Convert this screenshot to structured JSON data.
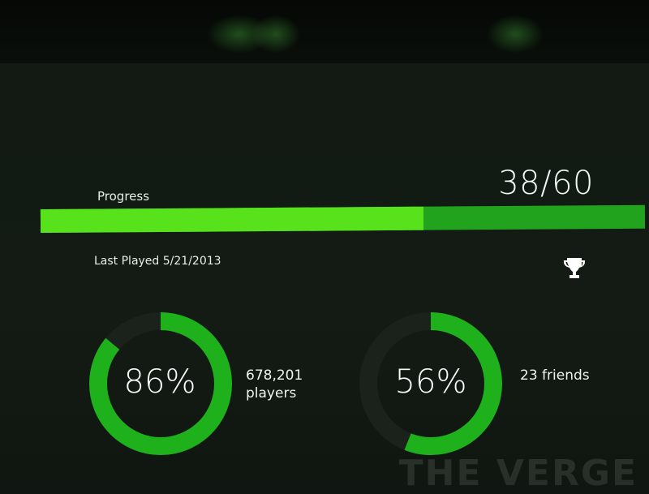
{
  "progress": {
    "label": "Progress",
    "count_text": "38/60",
    "earned": 38,
    "total": 60,
    "fill_color": "#58e21c",
    "track_color": "#22a31e"
  },
  "last_played": {
    "text": "Last Played 5/21/2013"
  },
  "trophy": {
    "icon": "trophy-icon"
  },
  "stats": [
    {
      "percent_text": "86%",
      "percent": 86,
      "caption_line1": "678,201",
      "caption_line2": "players"
    },
    {
      "percent_text": "56%",
      "percent": 56,
      "caption_line1": "23 friends",
      "caption_line2": ""
    }
  ],
  "ring_colors": {
    "filled": "#1fb11b",
    "empty": "#1b221c"
  },
  "watermark": {
    "text": "THE VERGE"
  }
}
